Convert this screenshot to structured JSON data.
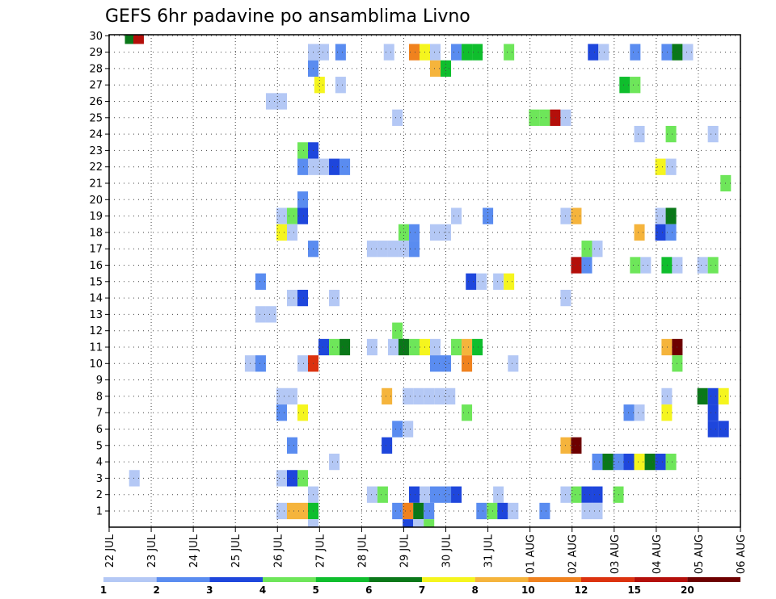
{
  "chart_data": {
    "type": "heatmap",
    "title": "GEFS 6hr padavine po ansamblima Livno",
    "y_ticks": [
      "1",
      "2",
      "3",
      "4",
      "5",
      "6",
      "7",
      "8",
      "9",
      "10",
      "11",
      "12",
      "13",
      "14",
      "15",
      "16",
      "17",
      "18",
      "19",
      "20",
      "21",
      "22",
      "23",
      "24",
      "25",
      "26",
      "27",
      "28",
      "29",
      "30"
    ],
    "x_ticks": [
      "22 JUL",
      "23 JUL",
      "24 JUL",
      "25 JUL",
      "26 JUL",
      "27 JUL",
      "28 JUL",
      "29 JUL",
      "30 JUL",
      "31 JUL",
      "01 AUG",
      "02 AUG",
      "03 AUG",
      "04 AUG",
      "05 AUG",
      "06 AUG"
    ],
    "grid": true,
    "legend": {
      "placement": "bottom",
      "labels": [
        "1",
        "2",
        "3",
        "4",
        "5",
        "6",
        "7",
        "8",
        "10",
        "12",
        "15",
        "20"
      ],
      "colors": [
        "#b4c8f5",
        "#5a8cf0",
        "#1e46dc",
        "#6ee65a",
        "#0fbe2d",
        "#0a7819",
        "#f5f51e",
        "#f5b43c",
        "#f0821e",
        "#dc320f",
        "#b40f0a",
        "#6e0000"
      ]
    },
    "cells": [
      {
        "member": 30,
        "t": 0.5,
        "c": 5
      },
      {
        "member": 30,
        "t": 0.7,
        "c": 10
      },
      {
        "member": 29,
        "t": 4.85,
        "c": 0
      },
      {
        "member": 29,
        "t": 5.1,
        "c": 0
      },
      {
        "member": 29,
        "t": 5.5,
        "c": 1
      },
      {
        "member": 29,
        "t": 6.65,
        "c": 0
      },
      {
        "member": 29,
        "t": 7.25,
        "c": 8
      },
      {
        "member": 29,
        "t": 7.5,
        "c": 6
      },
      {
        "member": 29,
        "t": 7.75,
        "c": 0
      },
      {
        "member": 29,
        "t": 8.25,
        "c": 1
      },
      {
        "member": 29,
        "t": 8.5,
        "c": 4
      },
      {
        "member": 29,
        "t": 8.75,
        "c": 4
      },
      {
        "member": 29,
        "t": 9.5,
        "c": 3
      },
      {
        "member": 29,
        "t": 11.5,
        "c": 2
      },
      {
        "member": 29,
        "t": 11.75,
        "c": 0
      },
      {
        "member": 29,
        "t": 12.5,
        "c": 1
      },
      {
        "member": 29,
        "t": 13.25,
        "c": 1
      },
      {
        "member": 29,
        "t": 13.5,
        "c": 5
      },
      {
        "member": 29,
        "t": 13.75,
        "c": 0
      },
      {
        "member": 28,
        "t": 4.85,
        "c": 1
      },
      {
        "member": 28,
        "t": 7.75,
        "c": 7
      },
      {
        "member": 28,
        "t": 8.0,
        "c": 4
      },
      {
        "member": 27,
        "t": 5.0,
        "c": 6
      },
      {
        "member": 27,
        "t": 5.5,
        "c": 0
      },
      {
        "member": 27,
        "t": 12.25,
        "c": 4
      },
      {
        "member": 27,
        "t": 12.5,
        "c": 3
      },
      {
        "member": 26,
        "t": 3.85,
        "c": 0
      },
      {
        "member": 26,
        "t": 4.1,
        "c": 0
      },
      {
        "member": 25,
        "t": 6.85,
        "c": 0
      },
      {
        "member": 25,
        "t": 10.1,
        "c": 3
      },
      {
        "member": 25,
        "t": 10.35,
        "c": 3
      },
      {
        "member": 25,
        "t": 10.6,
        "c": 10
      },
      {
        "member": 25,
        "t": 10.85,
        "c": 0
      },
      {
        "member": 24,
        "t": 12.6,
        "c": 0
      },
      {
        "member": 24,
        "t": 13.35,
        "c": 3
      },
      {
        "member": 24,
        "t": 14.35,
        "c": 0
      },
      {
        "member": 23,
        "t": 4.6,
        "c": 3
      },
      {
        "member": 23,
        "t": 4.85,
        "c": 2
      },
      {
        "member": 22,
        "t": 4.6,
        "c": 1
      },
      {
        "member": 22,
        "t": 4.85,
        "c": 0
      },
      {
        "member": 22,
        "t": 5.1,
        "c": 0
      },
      {
        "member": 22,
        "t": 5.35,
        "c": 2
      },
      {
        "member": 22,
        "t": 5.6,
        "c": 1
      },
      {
        "member": 22,
        "t": 13.1,
        "c": 6
      },
      {
        "member": 22,
        "t": 13.35,
        "c": 0
      },
      {
        "member": 21,
        "t": 14.65,
        "c": 3
      },
      {
        "member": 20,
        "t": 4.6,
        "c": 1
      },
      {
        "member": 19,
        "t": 4.1,
        "c": 0
      },
      {
        "member": 19,
        "t": 4.35,
        "c": 3
      },
      {
        "member": 19,
        "t": 4.6,
        "c": 2
      },
      {
        "member": 19,
        "t": 8.25,
        "c": 0
      },
      {
        "member": 19,
        "t": 9.0,
        "c": 1
      },
      {
        "member": 19,
        "t": 10.85,
        "c": 0
      },
      {
        "member": 19,
        "t": 11.1,
        "c": 7
      },
      {
        "member": 19,
        "t": 13.1,
        "c": 0
      },
      {
        "member": 19,
        "t": 13.35,
        "c": 5
      },
      {
        "member": 18,
        "t": 4.1,
        "c": 6
      },
      {
        "member": 18,
        "t": 4.35,
        "c": 0
      },
      {
        "member": 18,
        "t": 7.0,
        "c": 3
      },
      {
        "member": 18,
        "t": 7.25,
        "c": 1
      },
      {
        "member": 18,
        "t": 7.75,
        "c": 0
      },
      {
        "member": 18,
        "t": 8.0,
        "c": 0
      },
      {
        "member": 18,
        "t": 12.6,
        "c": 7
      },
      {
        "member": 18,
        "t": 13.1,
        "c": 2
      },
      {
        "member": 18,
        "t": 13.35,
        "c": 1
      },
      {
        "member": 17,
        "t": 4.85,
        "c": 1
      },
      {
        "member": 17,
        "t": 6.25,
        "c": 0
      },
      {
        "member": 17,
        "t": 6.5,
        "c": 0
      },
      {
        "member": 17,
        "t": 6.75,
        "c": 0
      },
      {
        "member": 17,
        "t": 7.0,
        "c": 0
      },
      {
        "member": 17,
        "t": 7.25,
        "c": 1
      },
      {
        "member": 17,
        "t": 11.35,
        "c": 3
      },
      {
        "member": 17,
        "t": 11.6,
        "c": 0
      },
      {
        "member": 16,
        "t": 11.1,
        "c": 10
      },
      {
        "member": 16,
        "t": 11.35,
        "c": 1
      },
      {
        "member": 16,
        "t": 12.5,
        "c": 3
      },
      {
        "member": 16,
        "t": 12.75,
        "c": 0
      },
      {
        "member": 16,
        "t": 13.25,
        "c": 4
      },
      {
        "member": 16,
        "t": 13.5,
        "c": 0
      },
      {
        "member": 16,
        "t": 14.1,
        "c": 0
      },
      {
        "member": 16,
        "t": 14.35,
        "c": 3
      },
      {
        "member": 15,
        "t": 3.6,
        "c": 1
      },
      {
        "member": 15,
        "t": 8.6,
        "c": 2
      },
      {
        "member": 15,
        "t": 8.85,
        "c": 0
      },
      {
        "member": 15,
        "t": 9.25,
        "c": 0
      },
      {
        "member": 15,
        "t": 9.5,
        "c": 6
      },
      {
        "member": 14,
        "t": 4.35,
        "c": 0
      },
      {
        "member": 14,
        "t": 4.6,
        "c": 2
      },
      {
        "member": 14,
        "t": 5.35,
        "c": 0
      },
      {
        "member": 14,
        "t": 10.85,
        "c": 0
      },
      {
        "member": 13,
        "t": 3.6,
        "c": 0
      },
      {
        "member": 13,
        "t": 3.85,
        "c": 0
      },
      {
        "member": 12,
        "t": 6.85,
        "c": 3
      },
      {
        "member": 11,
        "t": 5.1,
        "c": 2
      },
      {
        "member": 11,
        "t": 5.35,
        "c": 3
      },
      {
        "member": 11,
        "t": 5.6,
        "c": 5
      },
      {
        "member": 11,
        "t": 6.25,
        "c": 0
      },
      {
        "member": 11,
        "t": 6.75,
        "c": 0
      },
      {
        "member": 11,
        "t": 7.0,
        "c": 5
      },
      {
        "member": 11,
        "t": 7.25,
        "c": 3
      },
      {
        "member": 11,
        "t": 7.5,
        "c": 6
      },
      {
        "member": 11,
        "t": 7.75,
        "c": 0
      },
      {
        "member": 11,
        "t": 8.25,
        "c": 3
      },
      {
        "member": 11,
        "t": 8.5,
        "c": 7
      },
      {
        "member": 11,
        "t": 8.75,
        "c": 4
      },
      {
        "member": 11,
        "t": 13.25,
        "c": 7
      },
      {
        "member": 11,
        "t": 13.5,
        "c": 11
      },
      {
        "member": 10,
        "t": 3.35,
        "c": 0
      },
      {
        "member": 10,
        "t": 3.6,
        "c": 1
      },
      {
        "member": 10,
        "t": 4.6,
        "c": 0
      },
      {
        "member": 10,
        "t": 4.85,
        "c": 9
      },
      {
        "member": 10,
        "t": 7.75,
        "c": 1
      },
      {
        "member": 10,
        "t": 8.0,
        "c": 1
      },
      {
        "member": 10,
        "t": 8.5,
        "c": 8
      },
      {
        "member": 10,
        "t": 9.6,
        "c": 0
      },
      {
        "member": 10,
        "t": 13.5,
        "c": 3
      },
      {
        "member": 8,
        "t": 4.1,
        "c": 0
      },
      {
        "member": 8,
        "t": 4.35,
        "c": 0
      },
      {
        "member": 8,
        "t": 6.6,
        "c": 7
      },
      {
        "member": 8,
        "t": 7.1,
        "c": 0
      },
      {
        "member": 8,
        "t": 7.35,
        "c": 0
      },
      {
        "member": 8,
        "t": 7.6,
        "c": 0
      },
      {
        "member": 8,
        "t": 7.85,
        "c": 0
      },
      {
        "member": 8,
        "t": 8.1,
        "c": 0
      },
      {
        "member": 8,
        "t": 13.25,
        "c": 0
      },
      {
        "member": 8,
        "t": 14.1,
        "c": 5
      },
      {
        "member": 8,
        "t": 14.35,
        "c": 2
      },
      {
        "member": 8,
        "t": 14.6,
        "c": 6
      },
      {
        "member": 7,
        "t": 4.1,
        "c": 1
      },
      {
        "member": 7,
        "t": 4.6,
        "c": 6
      },
      {
        "member": 7,
        "t": 8.5,
        "c": 3
      },
      {
        "member": 7,
        "t": 12.35,
        "c": 1
      },
      {
        "member": 7,
        "t": 12.6,
        "c": 0
      },
      {
        "member": 7,
        "t": 13.25,
        "c": 6
      },
      {
        "member": 7,
        "t": 14.35,
        "c": 2
      },
      {
        "member": 6,
        "t": 6.85,
        "c": 1
      },
      {
        "member": 6,
        "t": 7.1,
        "c": 0
      },
      {
        "member": 6,
        "t": 14.35,
        "c": 2
      },
      {
        "member": 6,
        "t": 14.6,
        "c": 2
      },
      {
        "member": 5,
        "t": 4.35,
        "c": 1
      },
      {
        "member": 5,
        "t": 6.6,
        "c": 2
      },
      {
        "member": 5,
        "t": 10.85,
        "c": 7
      },
      {
        "member": 5,
        "t": 11.1,
        "c": 11
      },
      {
        "member": 4,
        "t": 5.35,
        "c": 0
      },
      {
        "member": 4,
        "t": 11.6,
        "c": 1
      },
      {
        "member": 4,
        "t": 11.85,
        "c": 5
      },
      {
        "member": 4,
        "t": 12.1,
        "c": 1
      },
      {
        "member": 4,
        "t": 12.35,
        "c": 2
      },
      {
        "member": 4,
        "t": 12.6,
        "c": 6
      },
      {
        "member": 4,
        "t": 12.85,
        "c": 5
      },
      {
        "member": 4,
        "t": 13.1,
        "c": 2
      },
      {
        "member": 4,
        "t": 13.35,
        "c": 3
      },
      {
        "member": 3,
        "t": 0.6,
        "c": 0
      },
      {
        "member": 3,
        "t": 4.1,
        "c": 0
      },
      {
        "member": 3,
        "t": 4.35,
        "c": 2
      },
      {
        "member": 3,
        "t": 4.6,
        "c": 3
      },
      {
        "member": 2,
        "t": 4.85,
        "c": 0
      },
      {
        "member": 2,
        "t": 6.25,
        "c": 0
      },
      {
        "member": 2,
        "t": 6.5,
        "c": 3
      },
      {
        "member": 2,
        "t": 7.25,
        "c": 2
      },
      {
        "member": 2,
        "t": 7.5,
        "c": 0
      },
      {
        "member": 2,
        "t": 7.75,
        "c": 1
      },
      {
        "member": 2,
        "t": 8.0,
        "c": 1
      },
      {
        "member": 2,
        "t": 8.25,
        "c": 2
      },
      {
        "member": 2,
        "t": 9.25,
        "c": 0
      },
      {
        "member": 2,
        "t": 10.85,
        "c": 0
      },
      {
        "member": 2,
        "t": 11.1,
        "c": 3
      },
      {
        "member": 2,
        "t": 11.35,
        "c": 2
      },
      {
        "member": 2,
        "t": 11.6,
        "c": 2
      },
      {
        "member": 2,
        "t": 12.1,
        "c": 3
      },
      {
        "member": 1,
        "t": 4.1,
        "c": 0
      },
      {
        "member": 1,
        "t": 4.35,
        "c": 7
      },
      {
        "member": 1,
        "t": 4.6,
        "c": 7
      },
      {
        "member": 1,
        "t": 4.85,
        "c": 4
      },
      {
        "member": 1,
        "t": 6.85,
        "c": 1
      },
      {
        "member": 1,
        "t": 7.1,
        "c": 8
      },
      {
        "member": 1,
        "t": 7.35,
        "c": 5
      },
      {
        "member": 1,
        "t": 7.6,
        "c": 1
      },
      {
        "member": 1,
        "t": 8.85,
        "c": 1
      },
      {
        "member": 1,
        "t": 9.1,
        "c": 3
      },
      {
        "member": 1,
        "t": 9.35,
        "c": 2
      },
      {
        "member": 1,
        "t": 9.6,
        "c": 0
      },
      {
        "member": 1,
        "t": 10.35,
        "c": 1
      },
      {
        "member": 1,
        "t": 11.35,
        "c": 0
      },
      {
        "member": 1,
        "t": 11.6,
        "c": 0
      },
      {
        "member": 0,
        "t": 4.85,
        "c": 0
      },
      {
        "member": 0,
        "t": 7.1,
        "c": 2
      },
      {
        "member": 0,
        "t": 7.35,
        "c": 0
      },
      {
        "member": 0,
        "t": 7.6,
        "c": 3
      }
    ]
  }
}
